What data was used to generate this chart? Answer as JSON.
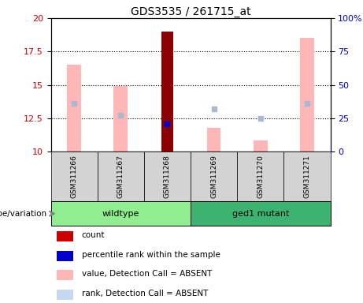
{
  "title": "GDS3535 / 261715_at",
  "samples": [
    "GSM311266",
    "GSM311267",
    "GSM311268",
    "GSM311269",
    "GSM311270",
    "GSM311271"
  ],
  "ylim_left": [
    10,
    20
  ],
  "ylim_right": [
    0,
    100
  ],
  "yticks_left": [
    10,
    12.5,
    15,
    17.5,
    20
  ],
  "yticks_right": [
    0,
    25,
    50,
    75,
    100
  ],
  "ytick_labels_left": [
    "10",
    "12.5",
    "15",
    "17.5",
    "20"
  ],
  "ytick_labels_right": [
    "0",
    "25",
    "50",
    "75",
    "100%"
  ],
  "left_color": "#cc0000",
  "right_color": "#0000cc",
  "pink_values": [
    16.5,
    14.9,
    null,
    11.8,
    10.8,
    18.5
  ],
  "red_values": [
    null,
    null,
    19.0,
    null,
    null,
    null
  ],
  "blue_values": [
    null,
    null,
    12.05,
    null,
    null,
    null
  ],
  "light_blue_values": [
    13.6,
    12.7,
    null,
    13.2,
    12.5,
    13.6
  ],
  "wildtype_color": "#90EE90",
  "mutant_color": "#3CB371",
  "gray_cell_color": "#d3d3d3",
  "genotype_label": "genotype/variation",
  "wildtype_label": "wildtype",
  "mutant_label": "ged1 mutant",
  "legend_items": [
    {
      "color": "#cc0000",
      "label": "count",
      "size": 8
    },
    {
      "color": "#0000cc",
      "label": "percentile rank within the sample",
      "size": 8
    },
    {
      "color": "#ffb6b6",
      "label": "value, Detection Call = ABSENT",
      "size": 8
    },
    {
      "color": "#c6d9f0",
      "label": "rank, Detection Call = ABSENT",
      "size": 8
    }
  ],
  "pink_color": "#ffb6b6",
  "red_color": "#8b0000",
  "blue_color": "#0000cc",
  "lb_color": "#aab8d0"
}
